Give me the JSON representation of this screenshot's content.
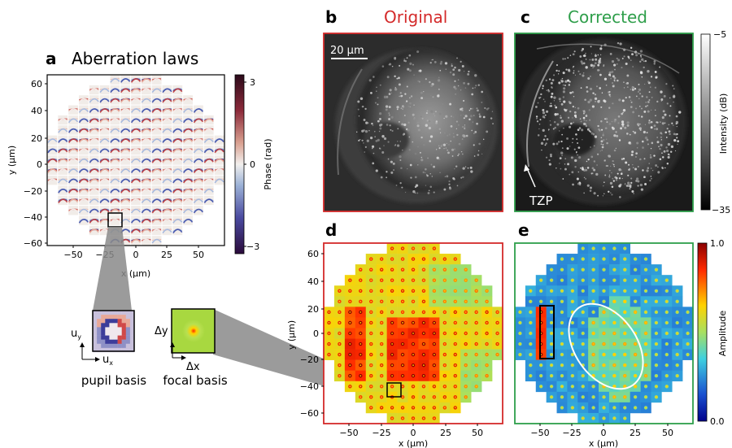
{
  "panel_a": {
    "letter": "a",
    "title": "Aberration laws",
    "xlabel": "x (µm)",
    "ylabel": "y (µm)",
    "xticks": [
      "−50",
      "−25",
      "0",
      "25",
      "50"
    ],
    "yticks": [
      "60",
      "40",
      "20",
      "0",
      "−20",
      "−40",
      "−60"
    ],
    "colorbar_label": "Phase (rad)",
    "colorbar_ticks": [
      "3",
      "0",
      "−3"
    ]
  },
  "panel_b": {
    "letter": "b",
    "title": "Original",
    "title_color": "#d42a2a",
    "scalebar": "20 µm"
  },
  "panel_c": {
    "letter": "c",
    "title": "Corrected",
    "title_color": "#2e9e4a",
    "annotation": "TZP",
    "colorbar_label": "Intensity (dB)",
    "colorbar_ticks": [
      "−5",
      "−35"
    ]
  },
  "panel_d": {
    "letter": "d",
    "xlabel": "x (µm)",
    "ylabel": "y (µm)",
    "xticks": [
      "−50",
      "−25",
      "0",
      "25",
      "50"
    ],
    "yticks": [
      "60",
      "40",
      "20",
      "0",
      "−20",
      "−40",
      "−60"
    ]
  },
  "panel_e": {
    "letter": "e",
    "xlabel": "x (µm)",
    "xticks": [
      "−50",
      "−25",
      "0",
      "25",
      "50"
    ],
    "colorbar_label": "Amplitude",
    "colorbar_ticks": [
      "1.0",
      "0.0"
    ]
  },
  "insets": {
    "pupil_label": "pupil basis",
    "focal_label": "focal basis",
    "pupil_axis_x": "u",
    "pupil_axis_x_sub": "x",
    "pupil_axis_y": "u",
    "pupil_axis_y_sub": "y",
    "focal_axis_x": "Δx",
    "focal_axis_y": "Δy"
  },
  "colors": {
    "red_frame": "#d42a2a",
    "green_frame": "#2e9e4a"
  }
}
